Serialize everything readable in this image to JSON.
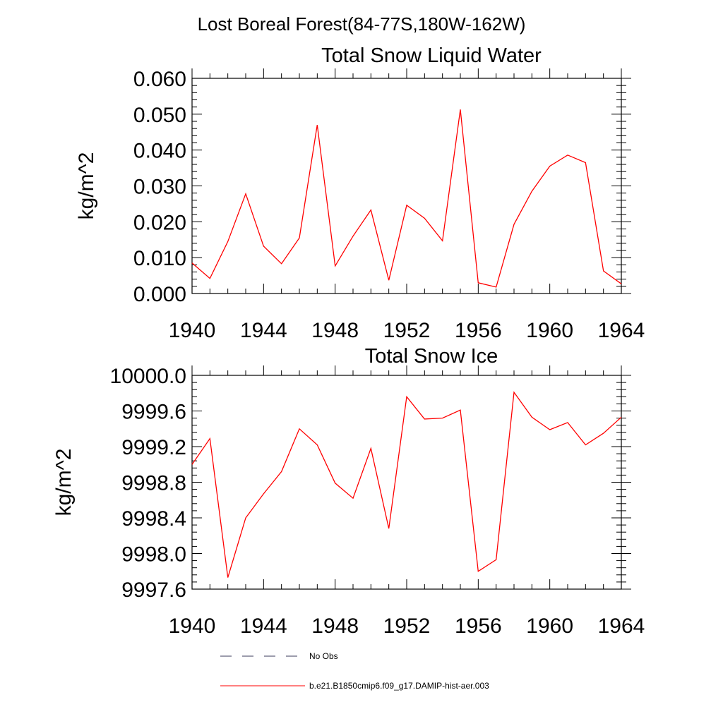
{
  "page": {
    "title": "Lost Boreal Forest(84-77S,180W-162W)"
  },
  "chart_data": [
    {
      "type": "line",
      "title": "Total Snow Liquid Water",
      "ylabel": "kg/m^2",
      "xlabel": "",
      "xlim": [
        1940,
        1964
      ],
      "ylim": [
        0.0,
        0.06
      ],
      "x_ticks": [
        1940,
        1944,
        1948,
        1952,
        1956,
        1960,
        1964
      ],
      "x_tick_labels": [
        "1940",
        "1944",
        "1948",
        "1952",
        "1956",
        "1960",
        "1964"
      ],
      "y_ticks": [
        0.0,
        0.01,
        0.02,
        0.03,
        0.04,
        0.05,
        0.06
      ],
      "y_tick_labels": [
        "0.000",
        "0.010",
        "0.020",
        "0.030",
        "0.040",
        "0.050",
        "0.060"
      ],
      "grid": false,
      "x": [
        1940,
        1941,
        1942,
        1943,
        1944,
        1945,
        1946,
        1947,
        1948,
        1949,
        1950,
        1951,
        1952,
        1953,
        1954,
        1955,
        1956,
        1957,
        1958,
        1959,
        1960,
        1961,
        1962,
        1963,
        1964
      ],
      "series": [
        {
          "name": "b.e21.B1850cmip6.f09_g17.DAMIP-hist-aer.003",
          "color": "#ff0000",
          "values": [
            0.0085,
            0.0042,
            0.0145,
            0.0278,
            0.0132,
            0.0083,
            0.0155,
            0.047,
            0.0077,
            0.016,
            0.0233,
            0.0037,
            0.0246,
            0.021,
            0.0147,
            0.0513,
            0.003,
            0.0018,
            0.0193,
            0.0285,
            0.0355,
            0.0386,
            0.0365,
            0.0063,
            0.0027
          ]
        }
      ]
    },
    {
      "type": "line",
      "title": "Total Snow Ice",
      "ylabel": "kg/m^2",
      "xlabel": "",
      "xlim": [
        1940,
        1964
      ],
      "ylim": [
        9997.6,
        10000.0
      ],
      "x_ticks": [
        1940,
        1944,
        1948,
        1952,
        1956,
        1960,
        1964
      ],
      "x_tick_labels": [
        "1940",
        "1944",
        "1948",
        "1952",
        "1956",
        "1960",
        "1964"
      ],
      "y_ticks": [
        9997.6,
        9998.0,
        9998.4,
        9998.8,
        9999.2,
        9999.6,
        10000.0
      ],
      "y_tick_labels": [
        "9997.6",
        "9998.0",
        "9998.4",
        "9998.8",
        "9999.2",
        "9999.6",
        "10000.0"
      ],
      "grid": false,
      "x": [
        1940,
        1941,
        1942,
        1943,
        1944,
        1945,
        1946,
        1947,
        1948,
        1949,
        1950,
        1951,
        1952,
        1953,
        1954,
        1955,
        1956,
        1957,
        1958,
        1959,
        1960,
        1961,
        1962,
        1963,
        1964
      ],
      "series": [
        {
          "name": "b.e21.B1850cmip6.f09_g17.DAMIP-hist-aer.003",
          "color": "#ff0000",
          "values": [
            9999.0,
            9999.29,
            9997.73,
            9998.4,
            9998.67,
            9998.92,
            9999.4,
            9999.22,
            9998.79,
            9998.62,
            9999.18,
            9998.28,
            9999.76,
            9999.51,
            9999.52,
            9999.61,
            9997.8,
            9997.93,
            9999.81,
            9999.53,
            9999.39,
            9999.47,
            9999.22,
            9999.35,
            9999.53
          ]
        }
      ]
    }
  ],
  "legend": {
    "placement": "bottom",
    "entries": [
      {
        "label": "No Obs",
        "style": "dashed",
        "color": "#3a3a5a"
      },
      {
        "label": "b.e21.B1850cmip6.f09_g17.DAMIP-hist-aer.003",
        "style": "solid",
        "color": "#ff0000"
      }
    ]
  }
}
